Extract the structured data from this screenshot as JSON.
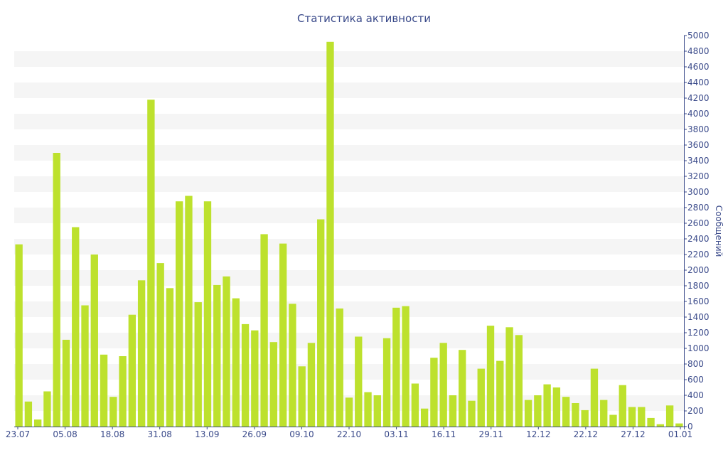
{
  "chart_data": {
    "type": "bar",
    "title": "Статистика активности",
    "xlabel": "",
    "ylabel": "Сообщений",
    "ylim": [
      0,
      5000
    ],
    "y_ticks": [
      0,
      200,
      400,
      600,
      800,
      1000,
      1200,
      1400,
      1600,
      1800,
      2000,
      2200,
      2400,
      2600,
      2800,
      3000,
      3200,
      3400,
      3600,
      3800,
      4000,
      4200,
      4400,
      4600,
      4800,
      5000
    ],
    "x_tick_labels": [
      "23.07",
      "05.08",
      "18.08",
      "31.08",
      "13.09",
      "26.09",
      "09.10",
      "22.10",
      "03.11",
      "16.11",
      "29.11",
      "12.12",
      "22.12",
      "27.12",
      "01.01"
    ],
    "grid": true,
    "colors": {
      "bar": "#bde12d",
      "text": "#3a4a8a",
      "band": "#f5f5f5"
    },
    "values": [
      2330,
      320,
      90,
      450,
      3500,
      1110,
      2550,
      1550,
      2200,
      920,
      380,
      900,
      1430,
      1870,
      4180,
      2090,
      1770,
      2880,
      2950,
      1590,
      2880,
      1810,
      1920,
      1640,
      1310,
      1230,
      2460,
      1080,
      2340,
      1570,
      770,
      1070,
      2650,
      4920,
      1510,
      370,
      1150,
      440,
      400,
      1130,
      1520,
      1540,
      550,
      230,
      880,
      1070,
      400,
      980,
      330,
      740,
      1290,
      840,
      1270,
      1170,
      340,
      400,
      540,
      500,
      380,
      300,
      210,
      740,
      340,
      150,
      530,
      250,
      250,
      110,
      30,
      270,
      40
    ]
  }
}
